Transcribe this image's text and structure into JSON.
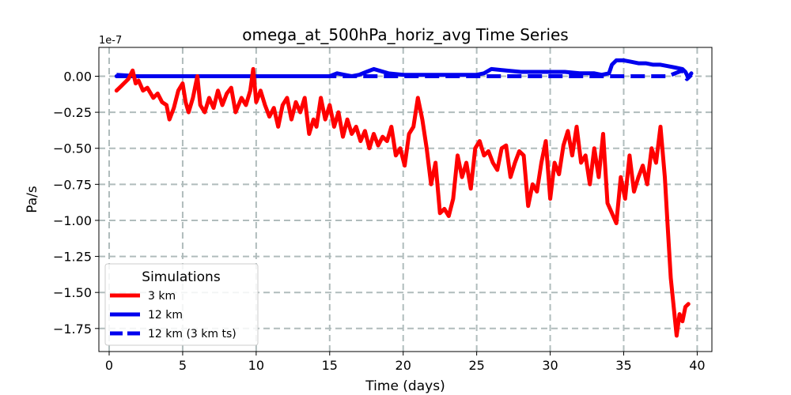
{
  "chart_data": {
    "type": "line",
    "title": "omega_at_500hPa_horiz_avg Time Series",
    "xlabel": "Time (days)",
    "ylabel": "Pa/s",
    "offset_label": "1e-7",
    "xlim": [
      -0.7,
      41.0
    ],
    "ylim": [
      -1.91,
      0.2
    ],
    "x_ticks": [
      0,
      5,
      10,
      15,
      20,
      25,
      30,
      35,
      40
    ],
    "x_tick_labels": [
      "0",
      "5",
      "10",
      "15",
      "20",
      "25",
      "30",
      "35",
      "40"
    ],
    "y_ticks": [
      0.0,
      -0.25,
      -0.5,
      -0.75,
      -1.0,
      -1.25,
      -1.5,
      -1.75
    ],
    "y_tick_labels": [
      "0.00",
      "−0.25",
      "−0.50",
      "−0.75",
      "−1.00",
      "−1.25",
      "−1.50",
      "−1.75"
    ],
    "grid": true,
    "legend": {
      "title": "Simulations",
      "position": "lower-left"
    },
    "series": [
      {
        "name": "3 km",
        "color": "#ff0000",
        "style": "solid",
        "x": [
          0.5,
          0.8,
          1.0,
          1.3,
          1.6,
          1.8,
          2.0,
          2.3,
          2.6,
          3.0,
          3.3,
          3.6,
          3.9,
          4.1,
          4.4,
          4.7,
          5.0,
          5.2,
          5.4,
          5.7,
          6.0,
          6.2,
          6.5,
          6.8,
          7.1,
          7.4,
          7.7,
          8.0,
          8.3,
          8.6,
          9.0,
          9.3,
          9.6,
          9.8,
          10.0,
          10.3,
          10.6,
          10.9,
          11.2,
          11.5,
          11.8,
          12.1,
          12.4,
          12.7,
          13.0,
          13.3,
          13.6,
          13.9,
          14.1,
          14.4,
          14.7,
          15.0,
          15.3,
          15.6,
          15.9,
          16.2,
          16.5,
          16.8,
          17.1,
          17.4,
          17.7,
          18.0,
          18.3,
          18.6,
          18.9,
          19.2,
          19.5,
          19.8,
          20.1,
          20.4,
          20.7,
          21.0,
          21.3,
          21.6,
          21.9,
          22.2,
          22.5,
          22.8,
          23.1,
          23.4,
          23.7,
          24.0,
          24.3,
          24.6,
          24.9,
          25.2,
          25.5,
          25.8,
          26.1,
          26.4,
          26.7,
          27.0,
          27.3,
          27.6,
          27.9,
          28.2,
          28.5,
          28.8,
          29.1,
          29.4,
          29.7,
          30.0,
          30.3,
          30.6,
          30.9,
          31.2,
          31.5,
          31.8,
          32.1,
          32.4,
          32.7,
          33.0,
          33.3,
          33.6,
          33.9,
          34.2,
          34.5,
          34.8,
          35.1,
          35.4,
          35.7,
          36.0,
          36.3,
          36.6,
          36.9,
          37.2,
          37.5,
          37.8,
          38.0,
          38.2,
          38.4,
          38.6,
          38.8,
          39.0,
          39.2,
          39.4
        ],
        "values": [
          -0.1,
          -0.07,
          -0.05,
          -0.02,
          0.04,
          -0.05,
          -0.03,
          -0.1,
          -0.08,
          -0.15,
          -0.12,
          -0.18,
          -0.2,
          -0.3,
          -0.22,
          -0.1,
          -0.05,
          -0.18,
          -0.25,
          -0.15,
          0.0,
          -0.2,
          -0.25,
          -0.15,
          -0.22,
          -0.1,
          -0.2,
          -0.12,
          -0.08,
          -0.25,
          -0.15,
          -0.2,
          -0.1,
          0.05,
          -0.18,
          -0.1,
          -0.2,
          -0.28,
          -0.22,
          -0.35,
          -0.2,
          -0.15,
          -0.3,
          -0.18,
          -0.25,
          -0.15,
          -0.4,
          -0.3,
          -0.35,
          -0.15,
          -0.3,
          -0.2,
          -0.35,
          -0.25,
          -0.42,
          -0.3,
          -0.4,
          -0.35,
          -0.45,
          -0.38,
          -0.5,
          -0.4,
          -0.48,
          -0.42,
          -0.45,
          -0.35,
          -0.55,
          -0.5,
          -0.62,
          -0.4,
          -0.35,
          -0.15,
          -0.3,
          -0.5,
          -0.75,
          -0.6,
          -0.95,
          -0.92,
          -0.97,
          -0.85,
          -0.55,
          -0.7,
          -0.6,
          -0.78,
          -0.5,
          -0.45,
          -0.55,
          -0.52,
          -0.6,
          -0.65,
          -0.5,
          -0.48,
          -0.7,
          -0.6,
          -0.52,
          -0.55,
          -0.9,
          -0.75,
          -0.8,
          -0.6,
          -0.45,
          -0.85,
          -0.6,
          -0.68,
          -0.48,
          -0.38,
          -0.55,
          -0.35,
          -0.6,
          -0.55,
          -0.75,
          -0.5,
          -0.7,
          -0.4,
          -0.88,
          -0.95,
          -1.02,
          -0.7,
          -0.85,
          -0.55,
          -0.8,
          -0.7,
          -0.62,
          -0.75,
          -0.5,
          -0.6,
          -0.35,
          -0.7,
          -1.05,
          -1.4,
          -1.6,
          -1.8,
          -1.65,
          -1.7,
          -1.6,
          -1.58
        ],
        "line_width": 5
      },
      {
        "name": "12 km",
        "color": "#0000ee",
        "style": "solid",
        "x": [
          0.5,
          2,
          4,
          6,
          8,
          10,
          12,
          14,
          15,
          15.5,
          16,
          16.5,
          17,
          17.5,
          18,
          19,
          20,
          22,
          24,
          25,
          25.5,
          26,
          27,
          28,
          30,
          31,
          32,
          33,
          33.5,
          34,
          34.2,
          34.5,
          35,
          35.5,
          36,
          36.5,
          37,
          37.5,
          38,
          38.5,
          39,
          39.2,
          39.4,
          39.6
        ],
        "values": [
          0.0,
          0.0,
          0.0,
          0.0,
          0.0,
          0.0,
          0.0,
          0.0,
          0.0,
          0.02,
          0.01,
          0.0,
          0.01,
          0.03,
          0.05,
          0.02,
          0.01,
          0.01,
          0.01,
          0.01,
          0.02,
          0.05,
          0.04,
          0.03,
          0.03,
          0.03,
          0.02,
          0.02,
          0.01,
          0.02,
          0.08,
          0.11,
          0.11,
          0.1,
          0.09,
          0.09,
          0.08,
          0.08,
          0.07,
          0.06,
          0.05,
          0.03,
          -0.01,
          0.02
        ],
        "line_width": 5
      },
      {
        "name": "12 km (3 km ts)",
        "color": "#0000ee",
        "style": "dashed",
        "x": [
          0.5,
          2,
          4,
          6,
          8,
          10,
          12,
          14,
          16,
          18,
          20,
          22,
          24,
          26,
          28,
          30,
          32,
          34,
          36,
          38,
          38.5,
          39,
          39.3,
          39.6
        ],
        "values": [
          0.01,
          0.0,
          0.0,
          0.0,
          0.0,
          0.0,
          0.0,
          0.0,
          0.0,
          0.0,
          0.0,
          0.0,
          0.0,
          0.0,
          0.0,
          0.0,
          0.0,
          0.0,
          0.0,
          0.0,
          0.02,
          0.04,
          -0.02,
          0.01
        ],
        "line_width": 5
      }
    ]
  }
}
